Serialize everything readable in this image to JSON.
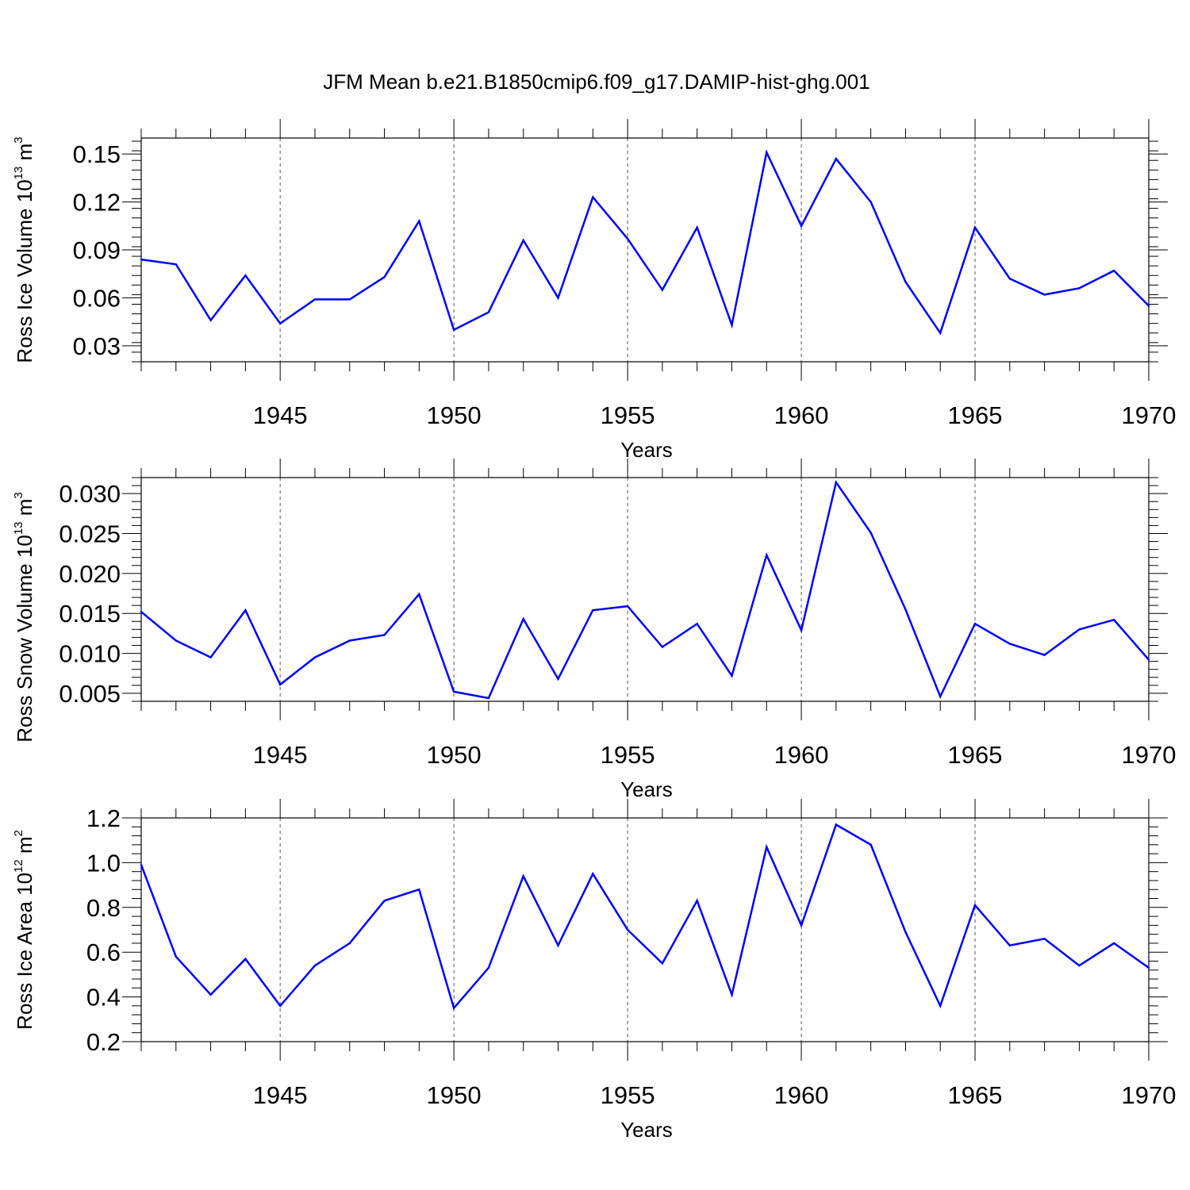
{
  "title": "JFM Mean b.e21.B1850cmip6.f09_g17.DAMIP-hist-ghg.001",
  "chart_data": [
    {
      "type": "line",
      "ylabel": {
        "text": "Ross Ice Volume 10",
        "exp": "13",
        "unit": " m",
        "unit_exp": "3"
      },
      "xlabel": "Years",
      "xlim": [
        1941,
        1970
      ],
      "ylim": [
        0.02,
        0.16
      ],
      "yticks": [
        0.03,
        0.06,
        0.09,
        0.12,
        0.15
      ],
      "ytick_labels": [
        "0.03",
        "0.06",
        "0.09",
        "0.12",
        "0.15"
      ],
      "xticks": [
        1945,
        1950,
        1955,
        1960,
        1965,
        1970
      ],
      "xtick_labels": [
        "1945",
        "1950",
        "1955",
        "1960",
        "1965",
        "1970"
      ],
      "grid": "vertical dashed at major x ticks",
      "series_color": "#0000ff",
      "x": [
        1941,
        1942,
        1943,
        1944,
        1945,
        1946,
        1947,
        1948,
        1949,
        1950,
        1951,
        1952,
        1953,
        1954,
        1955,
        1956,
        1957,
        1958,
        1959,
        1960,
        1961,
        1962,
        1963,
        1964,
        1965,
        1966,
        1967,
        1968,
        1969,
        1970
      ],
      "values": [
        0.084,
        0.081,
        0.046,
        0.074,
        0.044,
        0.059,
        0.059,
        0.073,
        0.108,
        0.04,
        0.051,
        0.096,
        0.06,
        0.123,
        0.097,
        0.065,
        0.104,
        0.043,
        0.151,
        0.105,
        0.147,
        0.12,
        0.07,
        0.038,
        0.104,
        0.072,
        0.062,
        0.066,
        0.077,
        0.055
      ]
    },
    {
      "type": "line",
      "ylabel": {
        "text": "Ross Snow Volume 10",
        "exp": "13",
        "unit": " m",
        "unit_exp": "3"
      },
      "xlabel": "Years",
      "xlim": [
        1941,
        1970
      ],
      "ylim": [
        0.004,
        0.032
      ],
      "yticks": [
        0.005,
        0.01,
        0.015,
        0.02,
        0.025,
        0.03
      ],
      "ytick_labels": [
        "0.005",
        "0.010",
        "0.015",
        "0.020",
        "0.025",
        "0.030"
      ],
      "xticks": [
        1945,
        1950,
        1955,
        1960,
        1965,
        1970
      ],
      "xtick_labels": [
        "1945",
        "1950",
        "1955",
        "1960",
        "1965",
        "1970"
      ],
      "grid": "vertical dashed at major x ticks",
      "series_color": "#0000ff",
      "x": [
        1941,
        1942,
        1943,
        1944,
        1945,
        1946,
        1947,
        1948,
        1949,
        1950,
        1951,
        1952,
        1953,
        1954,
        1955,
        1956,
        1957,
        1958,
        1959,
        1960,
        1961,
        1962,
        1963,
        1964,
        1965,
        1966,
        1967,
        1968,
        1969,
        1970
      ],
      "values": [
        0.0152,
        0.0116,
        0.0095,
        0.0154,
        0.0061,
        0.0095,
        0.0116,
        0.0123,
        0.0174,
        0.0052,
        0.0044,
        0.0143,
        0.0068,
        0.0154,
        0.0159,
        0.0108,
        0.0137,
        0.0072,
        0.0223,
        0.0129,
        0.0314,
        0.0251,
        0.0155,
        0.0046,
        0.0137,
        0.0112,
        0.0098,
        0.013,
        0.0142,
        0.0092
      ]
    },
    {
      "type": "line",
      "ylabel": {
        "text": "Ross Ice Area 10",
        "exp": "12",
        "unit": " m",
        "unit_exp": "2"
      },
      "xlabel": "Years",
      "xlim": [
        1941,
        1970
      ],
      "ylim": [
        0.2,
        1.2
      ],
      "yticks": [
        0.2,
        0.4,
        0.6,
        0.8,
        1.0,
        1.2
      ],
      "ytick_labels": [
        "0.2",
        "0.4",
        "0.6",
        "0.8",
        "1.0",
        "1.2"
      ],
      "xticks": [
        1945,
        1950,
        1955,
        1960,
        1965,
        1970
      ],
      "xtick_labels": [
        "1945",
        "1950",
        "1955",
        "1960",
        "1965",
        "1970"
      ],
      "grid": "vertical dashed at major x ticks",
      "series_color": "#0000ff",
      "x": [
        1941,
        1942,
        1943,
        1944,
        1945,
        1946,
        1947,
        1948,
        1949,
        1950,
        1951,
        1952,
        1953,
        1954,
        1955,
        1956,
        1957,
        1958,
        1959,
        1960,
        1961,
        1962,
        1963,
        1964,
        1965,
        1966,
        1967,
        1968,
        1969,
        1970
      ],
      "values": [
        0.99,
        0.58,
        0.41,
        0.57,
        0.36,
        0.54,
        0.64,
        0.83,
        0.88,
        0.35,
        0.53,
        0.94,
        0.63,
        0.95,
        0.7,
        0.55,
        0.83,
        0.41,
        1.07,
        0.72,
        1.17,
        1.08,
        0.69,
        0.36,
        0.81,
        0.63,
        0.66,
        0.54,
        0.64,
        0.53
      ]
    }
  ]
}
